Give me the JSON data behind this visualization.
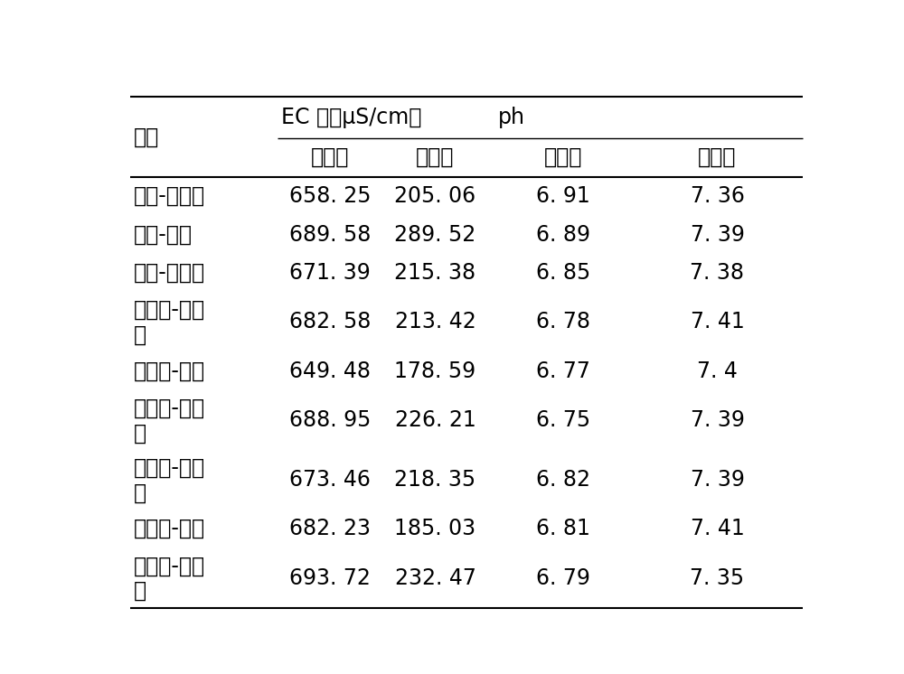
{
  "col_headers_level1_left": "处理",
  "col_headers_level1_ec": "EC 値（μS/cm）",
  "col_headers_level1_ph": "ph",
  "col_headers_level2": [
    "水作前",
    "水作后",
    "水作前",
    "水作后"
  ],
  "rows": [
    {
      "line1": "菜心-西洋菜",
      "line2": "",
      "ec_before": "658. 25",
      "ec_after": "205. 06",
      "ph_before": "6. 91",
      "ph_after": "7. 36"
    },
    {
      "line1": "菜心-水芹",
      "line2": "",
      "ec_before": "689. 58",
      "ec_after": "289. 52",
      "ph_before": "6. 89",
      "ph_after": "7. 39"
    },
    {
      "line1": "菜心-空心菜",
      "line2": "",
      "ec_before": "671. 39",
      "ec_after": "215. 38",
      "ph_before": "6. 85",
      "ph_after": "7. 38"
    },
    {
      "line1": "大白菜-西洋",
      "line2": "菜",
      "ec_before": "682. 58",
      "ec_after": "213. 42",
      "ph_before": "6. 78",
      "ph_after": "7. 41"
    },
    {
      "line1": "大白菜-水芹",
      "line2": "",
      "ec_before": "649. 48",
      "ec_after": "178. 59",
      "ph_before": "6. 77",
      "ph_after": "7. 4"
    },
    {
      "line1": "大白菜-空心",
      "line2": "菜",
      "ec_before": "688. 95",
      "ec_after": "226. 21",
      "ph_before": "6. 75",
      "ph_after": "7. 39"
    },
    {
      "line1": "小白菜-西洋",
      "line2": "菜",
      "ec_before": "673. 46",
      "ec_after": "218. 35",
      "ph_before": "6. 82",
      "ph_after": "7. 39"
    },
    {
      "line1": "小白菜-水芹",
      "line2": "",
      "ec_before": "682. 23",
      "ec_after": "185. 03",
      "ph_before": "6. 81",
      "ph_after": "7. 41"
    },
    {
      "line1": "小白菜-空心",
      "line2": "菜",
      "ec_before": "693. 72",
      "ec_after": "232. 47",
      "ph_before": "6. 79",
      "ph_after": "7. 35"
    }
  ],
  "bg_color": "#ffffff",
  "text_color": "#000000",
  "line_color": "#000000",
  "font_size": 17,
  "fig_width": 10.0,
  "fig_height": 7.46,
  "dpi": 100
}
